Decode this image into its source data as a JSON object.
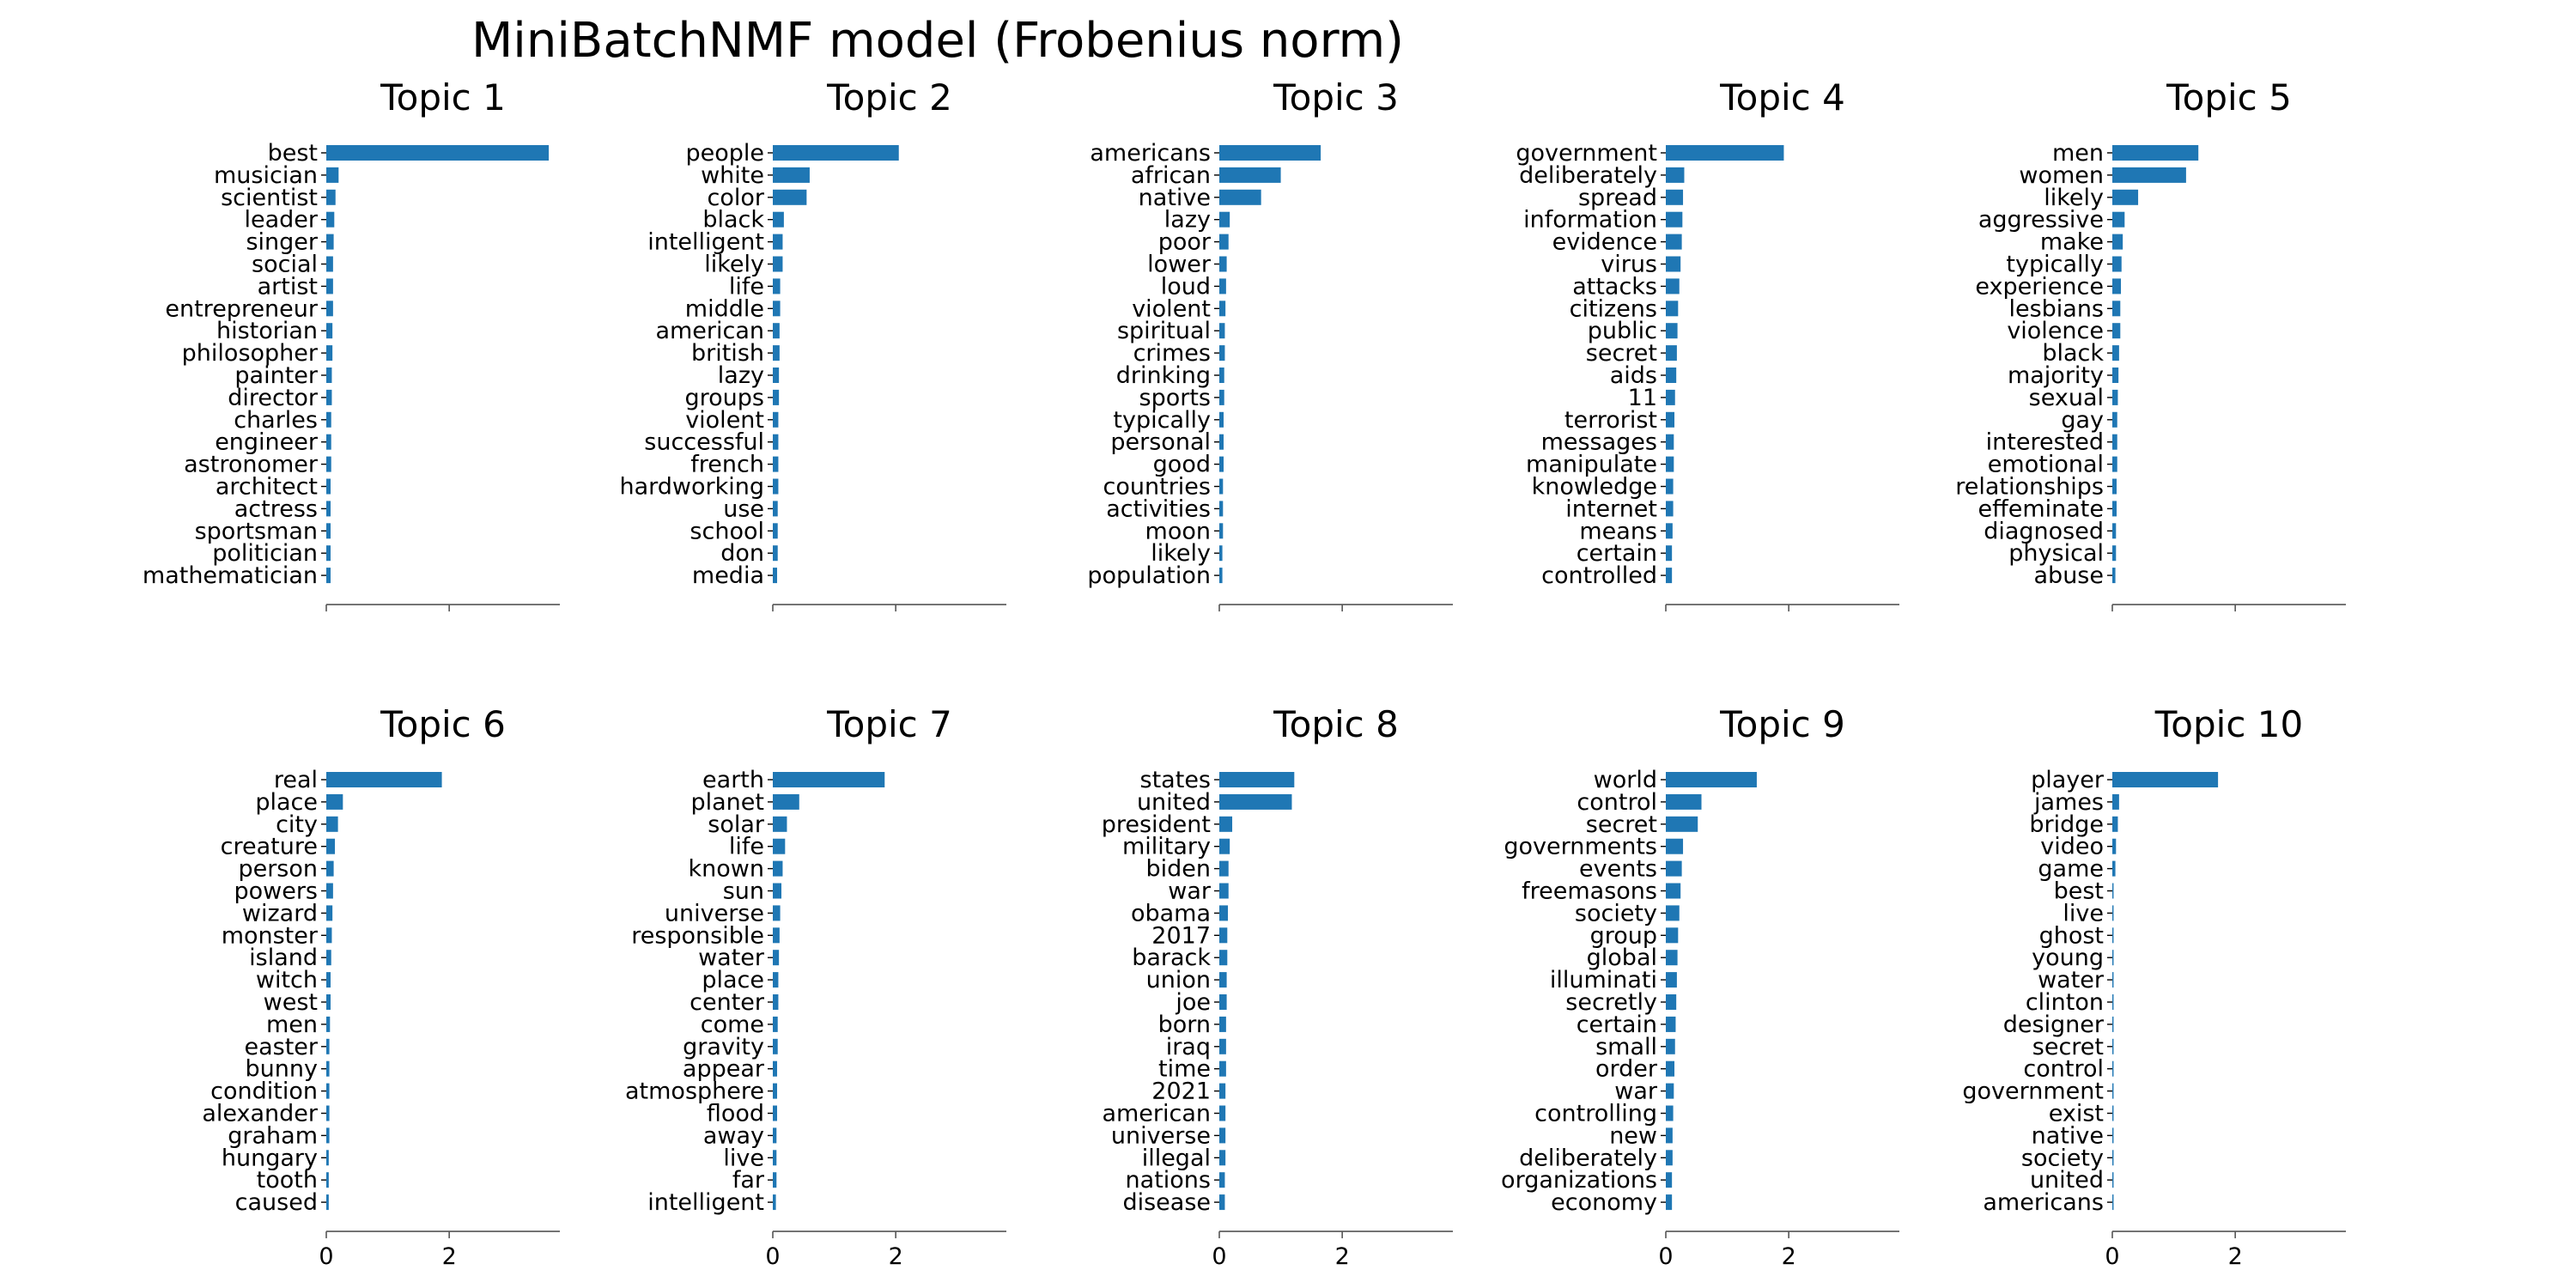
{
  "figure": {
    "title": "MiniBatchNMF model (Frobenius norm)",
    "bar_color": "#1f77b4"
  },
  "chart_data": [
    {
      "type": "bar",
      "orientation": "horizontal",
      "title": "Topic 1",
      "categories": [
        "best",
        "musician",
        "scientist",
        "leader",
        "singer",
        "social",
        "artist",
        "entrepreneur",
        "historian",
        "philosopher",
        "painter",
        "director",
        "charles",
        "engineer",
        "astronomer",
        "architect",
        "actress",
        "sportsman",
        "politician",
        "mathematician"
      ],
      "values": [
        3.62,
        0.2,
        0.15,
        0.13,
        0.12,
        0.11,
        0.11,
        0.11,
        0.1,
        0.1,
        0.09,
        0.09,
        0.08,
        0.08,
        0.08,
        0.07,
        0.07,
        0.07,
        0.07,
        0.07
      ],
      "xlim": [
        0,
        3.8
      ],
      "xticks": [
        0,
        2
      ],
      "show_xticklabels": false
    },
    {
      "type": "bar",
      "orientation": "horizontal",
      "title": "Topic 2",
      "categories": [
        "people",
        "white",
        "color",
        "black",
        "intelligent",
        "likely",
        "life",
        "middle",
        "american",
        "british",
        "lazy",
        "groups",
        "violent",
        "successful",
        "french",
        "hardworking",
        "use",
        "school",
        "don",
        "media"
      ],
      "values": [
        2.05,
        0.6,
        0.55,
        0.18,
        0.16,
        0.16,
        0.12,
        0.12,
        0.11,
        0.11,
        0.1,
        0.1,
        0.09,
        0.09,
        0.09,
        0.09,
        0.08,
        0.08,
        0.08,
        0.07
      ],
      "xlim": [
        0,
        3.8
      ],
      "xticks": [
        0,
        2
      ],
      "show_xticklabels": false
    },
    {
      "type": "bar",
      "orientation": "horizontal",
      "title": "Topic 3",
      "categories": [
        "americans",
        "african",
        "native",
        "lazy",
        "poor",
        "lower",
        "loud",
        "violent",
        "spiritual",
        "crimes",
        "drinking",
        "sports",
        "typically",
        "personal",
        "good",
        "countries",
        "activities",
        "moon",
        "likely",
        "population"
      ],
      "values": [
        1.65,
        1.0,
        0.68,
        0.17,
        0.15,
        0.12,
        0.11,
        0.1,
        0.09,
        0.09,
        0.08,
        0.08,
        0.07,
        0.07,
        0.07,
        0.06,
        0.06,
        0.06,
        0.05,
        0.05
      ],
      "xlim": [
        0,
        3.8
      ],
      "xticks": [
        0,
        2
      ],
      "show_xticklabels": false
    },
    {
      "type": "bar",
      "orientation": "horizontal",
      "title": "Topic 4",
      "categories": [
        "government",
        "deliberately",
        "spread",
        "information",
        "evidence",
        "virus",
        "attacks",
        "citizens",
        "public",
        "secret",
        "aids",
        "11",
        "terrorist",
        "messages",
        "manipulate",
        "knowledge",
        "internet",
        "means",
        "certain",
        "controlled"
      ],
      "values": [
        1.92,
        0.3,
        0.28,
        0.27,
        0.26,
        0.24,
        0.22,
        0.2,
        0.19,
        0.18,
        0.17,
        0.15,
        0.14,
        0.13,
        0.13,
        0.12,
        0.12,
        0.11,
        0.1,
        0.1
      ],
      "xlim": [
        0,
        3.8
      ],
      "xticks": [
        0,
        2
      ],
      "show_xticklabels": false
    },
    {
      "type": "bar",
      "orientation": "horizontal",
      "title": "Topic 5",
      "categories": [
        "men",
        "women",
        "likely",
        "aggressive",
        "make",
        "typically",
        "experience",
        "lesbians",
        "violence",
        "black",
        "majority",
        "sexual",
        "gay",
        "interested",
        "emotional",
        "relationships",
        "effeminate",
        "diagnosed",
        "physical",
        "abuse"
      ],
      "values": [
        1.4,
        1.2,
        0.42,
        0.2,
        0.17,
        0.15,
        0.14,
        0.13,
        0.13,
        0.11,
        0.1,
        0.09,
        0.08,
        0.08,
        0.08,
        0.07,
        0.07,
        0.06,
        0.06,
        0.05
      ],
      "xlim": [
        0,
        3.8
      ],
      "xticks": [
        0,
        2
      ],
      "show_xticklabels": false
    },
    {
      "type": "bar",
      "orientation": "horizontal",
      "title": "Topic 6",
      "categories": [
        "real",
        "place",
        "city",
        "creature",
        "person",
        "powers",
        "wizard",
        "monster",
        "island",
        "witch",
        "west",
        "men",
        "easter",
        "bunny",
        "condition",
        "alexander",
        "graham",
        "hungary",
        "tooth",
        "caused"
      ],
      "values": [
        1.88,
        0.27,
        0.19,
        0.14,
        0.12,
        0.11,
        0.1,
        0.09,
        0.08,
        0.07,
        0.07,
        0.06,
        0.05,
        0.05,
        0.05,
        0.05,
        0.05,
        0.04,
        0.04,
        0.04
      ],
      "xlim": [
        0,
        3.8
      ],
      "xticks": [
        0,
        2
      ],
      "xticklabels": [
        "0",
        "2"
      ]
    },
    {
      "type": "bar",
      "orientation": "horizontal",
      "title": "Topic 7",
      "categories": [
        "earth",
        "planet",
        "solar",
        "life",
        "known",
        "sun",
        "universe",
        "responsible",
        "water",
        "place",
        "center",
        "come",
        "gravity",
        "appear",
        "atmosphere",
        "flood",
        "away",
        "live",
        "far",
        "intelligent"
      ],
      "values": [
        1.82,
        0.43,
        0.23,
        0.2,
        0.16,
        0.14,
        0.12,
        0.11,
        0.1,
        0.09,
        0.09,
        0.08,
        0.08,
        0.07,
        0.07,
        0.07,
        0.06,
        0.06,
        0.06,
        0.05
      ],
      "xlim": [
        0,
        3.8
      ],
      "xticks": [
        0,
        2
      ],
      "xticklabels": [
        "0",
        "2"
      ]
    },
    {
      "type": "bar",
      "orientation": "horizontal",
      "title": "Topic 8",
      "categories": [
        "states",
        "united",
        "president",
        "military",
        "biden",
        "war",
        "obama",
        "2017",
        "barack",
        "union",
        "joe",
        "born",
        "iraq",
        "time",
        "2021",
        "american",
        "universe",
        "illegal",
        "nations",
        "disease"
      ],
      "values": [
        1.22,
        1.18,
        0.21,
        0.17,
        0.15,
        0.15,
        0.14,
        0.13,
        0.13,
        0.12,
        0.12,
        0.11,
        0.11,
        0.11,
        0.1,
        0.1,
        0.1,
        0.1,
        0.09,
        0.09
      ],
      "xlim": [
        0,
        3.8
      ],
      "xticks": [
        0,
        2
      ],
      "xticklabels": [
        "0",
        "2"
      ]
    },
    {
      "type": "bar",
      "orientation": "horizontal",
      "title": "Topic 9",
      "categories": [
        "world",
        "control",
        "secret",
        "governments",
        "events",
        "freemasons",
        "society",
        "group",
        "global",
        "illuminati",
        "secretly",
        "certain",
        "small",
        "order",
        "war",
        "controlling",
        "new",
        "deliberately",
        "organizations",
        "economy"
      ],
      "values": [
        1.48,
        0.58,
        0.52,
        0.28,
        0.26,
        0.24,
        0.22,
        0.2,
        0.19,
        0.18,
        0.17,
        0.16,
        0.15,
        0.14,
        0.13,
        0.12,
        0.11,
        0.11,
        0.1,
        0.1
      ],
      "xlim": [
        0,
        3.8
      ],
      "xticks": [
        0,
        2
      ],
      "xticklabels": [
        "0",
        "2"
      ]
    },
    {
      "type": "bar",
      "orientation": "horizontal",
      "title": "Topic 10",
      "categories": [
        "player",
        "james",
        "bridge",
        "video",
        "game",
        "best",
        "live",
        "ghost",
        "young",
        "water",
        "clinton",
        "designer",
        "secret",
        "control",
        "government",
        "exist",
        "native",
        "society",
        "united",
        "americans"
      ],
      "values": [
        1.72,
        0.11,
        0.09,
        0.06,
        0.05,
        0.02,
        0.02,
        0.02,
        0.02,
        0.02,
        0.02,
        0.02,
        0.02,
        0.02,
        0.02,
        0.02,
        0.02,
        0.02,
        0.02,
        0.02
      ],
      "xlim": [
        0,
        3.8
      ],
      "xticks": [
        0,
        2
      ],
      "xticklabels": [
        "0",
        "2"
      ]
    }
  ]
}
